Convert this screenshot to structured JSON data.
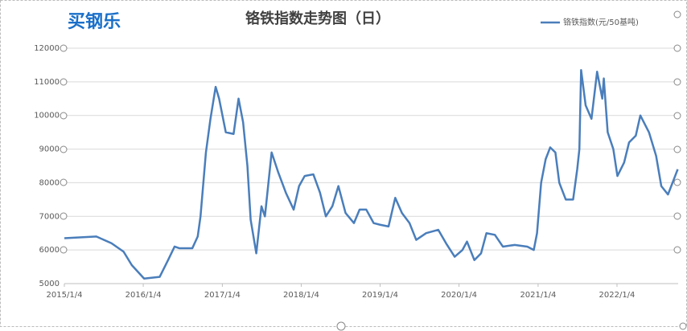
{
  "logo": "买钢乐",
  "chart_data": {
    "type": "line",
    "title": "铬铁指数走势图（日）",
    "x": [
      "2015/1/4",
      "2015/6/1",
      "2015/8/10",
      "2015/10/5",
      "2015/11/12",
      "2016/1/8",
      "2016/3/20",
      "2016/4/28",
      "2016/5/28",
      "2016/6/20",
      "2016/8/18",
      "2016/9/12",
      "2016/9/25",
      "2016/10/20",
      "2016/11/10",
      "2016/12/4",
      "2016/12/20",
      "2017/1/20",
      "2017/2/25",
      "2017/3/20",
      "2017/4/10",
      "2017/4/30",
      "2017/5/15",
      "2017/6/10",
      "2017/7/4",
      "2017/7/20",
      "2017/8/20",
      "2017/9/20",
      "2017/10/25",
      "2017/11/30",
      "2017/12/25",
      "2018/1/20",
      "2018/3/1",
      "2018/4/1",
      "2018/4/28",
      "2018/5/28",
      "2018/6/25",
      "2018/7/28",
      "2018/9/5",
      "2018/10/1",
      "2018/11/1",
      "2018/12/5",
      "2019/1/4",
      "2019/2/12",
      "2019/3/15",
      "2019/4/15",
      "2019/5/20",
      "2019/6/20",
      "2019/8/5",
      "2019/9/30",
      "2019/11/5",
      "2019/12/15",
      "2020/1/20",
      "2020/2/10",
      "2020/3/15",
      "2020/4/15",
      "2020/5/10",
      "2020/6/18",
      "2020/7/25",
      "2020/9/18",
      "2020/11/15",
      "2020/12/15",
      "2020/12/30",
      "2021/1/18",
      "2021/2/8",
      "2021/3/1",
      "2021/3/25",
      "2021/4/12",
      "2021/5/12",
      "2021/6/15",
      "2021/7/4",
      "2021/7/14",
      "2021/7/22",
      "2021/8/12",
      "2021/9/8",
      "2021/10/4",
      "2021/10/28",
      "2021/11/4",
      "2021/11/22",
      "2021/12/18",
      "2022/1/6",
      "2022/2/6",
      "2022/3/1",
      "2022/4/1",
      "2022/4/22",
      "2022/6/1",
      "2022/7/4",
      "2022/7/28",
      "2022/8/28",
      "2022/9/15",
      "2022/10/12"
    ],
    "series": [
      {
        "name": "铬铁指数(元/50基吨)",
        "color": "#4a7ebb",
        "values": [
          6350,
          6400,
          6200,
          5950,
          5550,
          5150,
          5200,
          5700,
          6100,
          6050,
          6050,
          6400,
          7000,
          8900,
          9900,
          10850,
          10500,
          9500,
          9450,
          10500,
          9800,
          8500,
          6900,
          5900,
          7300,
          7000,
          8900,
          8300,
          7700,
          7200,
          7900,
          8200,
          8250,
          7700,
          7000,
          7300,
          7900,
          7100,
          6800,
          7200,
          7200,
          6800,
          6750,
          6700,
          7550,
          7100,
          6800,
          6300,
          6500,
          6600,
          6200,
          5800,
          6000,
          6250,
          5700,
          5900,
          6500,
          6450,
          6100,
          6150,
          6100,
          6000,
          6500,
          8000,
          8700,
          9050,
          8900,
          8000,
          7500,
          7500,
          8400,
          9000,
          11350,
          10300,
          9900,
          11300,
          10500,
          11100,
          9500,
          9000,
          8200,
          8600,
          9200,
          9400,
          10000,
          9500,
          8800,
          7900,
          7650,
          7950,
          8400
        ]
      }
    ],
    "xlim": [
      "2015/1/4",
      "2022/10/14"
    ],
    "xticks": [
      "2015/1/4",
      "2016/1/4",
      "2017/1/4",
      "2018/1/4",
      "2019/1/4",
      "2020/1/4",
      "2021/1/4",
      "2022/1/4"
    ],
    "ylim": [
      5000,
      12000
    ],
    "yticks": [
      5000,
      6000,
      7000,
      8000,
      9000,
      10000,
      11000,
      12000
    ],
    "grid": true,
    "legend": "top-right"
  }
}
